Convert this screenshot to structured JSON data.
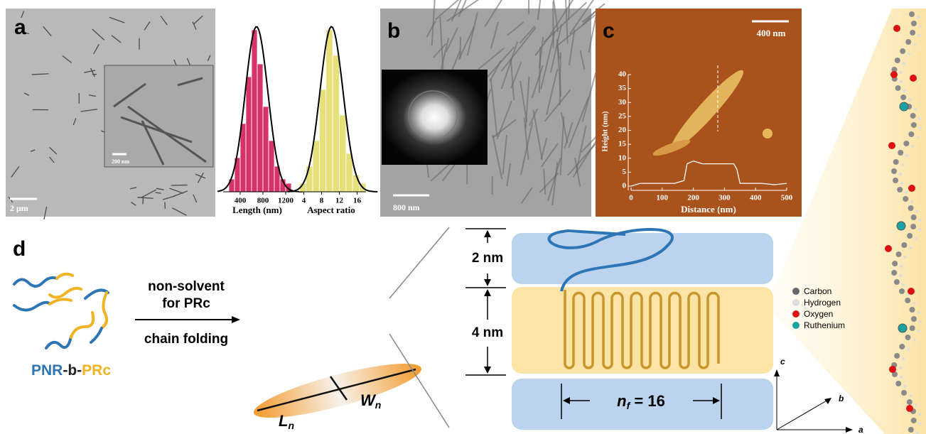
{
  "panel_a": {
    "label": "a",
    "scale_bar": "2 μm",
    "inset_scale_bar": "200 nm"
  },
  "length_histogram": {
    "type": "histogram",
    "xlabel": "Length (nm)",
    "bins": [
      200,
      300,
      400,
      500,
      600,
      700,
      800,
      900,
      1000,
      1100,
      1200,
      1300
    ],
    "counts": [
      3,
      8,
      16,
      27,
      38,
      30,
      20,
      12,
      6,
      3,
      2
    ],
    "color": "#d6336c",
    "xlim": [
      100,
      1350
    ],
    "ylim": [
      0,
      40
    ],
    "xticks": [
      400,
      800,
      1200
    ]
  },
  "aspect_histogram": {
    "type": "histogram",
    "xlabel": "Aspect ratio",
    "bins": [
      3,
      4.5,
      6,
      7.5,
      9,
      10.5,
      12,
      13.5,
      15,
      16.5,
      18
    ],
    "counts": [
      2,
      6,
      12,
      24,
      38,
      32,
      18,
      9,
      4,
      2
    ],
    "color": "#e6e07a",
    "xlim": [
      2,
      18
    ],
    "ylim": [
      0,
      40
    ],
    "xticks": [
      4,
      8,
      12,
      16
    ]
  },
  "panel_b": {
    "label": "b",
    "scale_bar": "800 nm"
  },
  "panel_c": {
    "label": "c",
    "scale_bar": "400 nm",
    "profile": {
      "type": "line",
      "xlabel": "Distance (nm)",
      "ylabel": "Height (nm)",
      "x": [
        0,
        30,
        60,
        100,
        140,
        170,
        180,
        200,
        230,
        260,
        290,
        310,
        330,
        340,
        350,
        380,
        420,
        460,
        500
      ],
      "values": [
        0,
        1,
        1,
        1,
        1,
        2,
        8,
        9,
        8,
        8,
        8,
        8,
        8,
        6,
        1,
        1,
        1,
        0.5,
        1
      ],
      "color": "#ffffff",
      "xlim": [
        0,
        500
      ],
      "ylim": [
        0,
        40
      ],
      "xticks": [
        0,
        100,
        200,
        300,
        400,
        500
      ],
      "yticks": [
        0,
        5,
        10,
        15,
        20,
        25,
        30,
        35,
        40
      ]
    }
  },
  "panel_d": {
    "label": "d",
    "polymer": [
      "PNR",
      "-b-",
      "PRc"
    ],
    "arrow_above": [
      "non-solvent",
      "for PRc"
    ],
    "arrow_below": "chain folding",
    "length": {
      "symbol": "L",
      "subscript": "n"
    },
    "width": {
      "symbol": "W",
      "subscript": "n"
    },
    "shell_thickness": "2 nm",
    "core_thickness": "4 nm",
    "folds": {
      "symbol": "n",
      "subscript": "f",
      "rest": " = 16"
    },
    "legend": [
      "Carbon",
      "Hydrogen",
      "Oxygen",
      "Ruthenium"
    ],
    "axes": [
      "a",
      "b",
      "c"
    ]
  }
}
